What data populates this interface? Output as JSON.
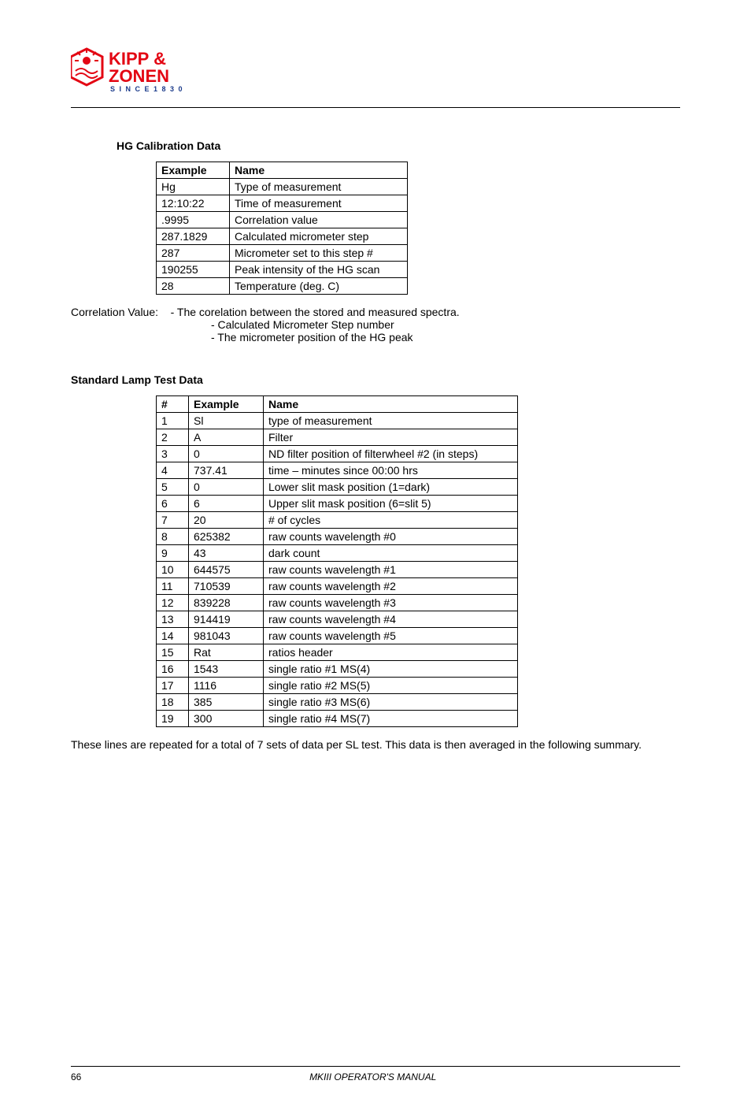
{
  "logo": {
    "brand_top": "KIPP &",
    "brand_bottom": "ZONEN",
    "tagline": "SINCE 1830",
    "red": "#e30613",
    "blue": "#1a3a8a"
  },
  "hg_section": {
    "title": "HG Calibration Data",
    "header_example": "Example",
    "header_name": "Name",
    "rows": [
      {
        "example": "Hg",
        "name": "Type of measurement"
      },
      {
        "example": "12:10:22",
        "name": "Time of measurement"
      },
      {
        "example": ".9995",
        "name": "Correlation value"
      },
      {
        "example": "287.1829",
        "name": "Calculated micrometer step"
      },
      {
        "example": "287",
        "name": "Micrometer set to this step #"
      },
      {
        "example": "190255",
        "name": "Peak intensity of the HG scan"
      },
      {
        "example": "28",
        "name": "Temperature (deg. C)"
      }
    ]
  },
  "correlation": {
    "label": "Correlation Value:",
    "line1": "- The corelation between the stored and measured spectra.",
    "line2": "- Calculated Micrometer Step number",
    "line3": "- The micrometer position of the HG peak"
  },
  "sl_section": {
    "title": "Standard Lamp Test Data",
    "header_num": "#",
    "header_example": "Example",
    "header_name": "Name",
    "rows": [
      {
        "n": "1",
        "ex": "Sl",
        "name": "type of measurement"
      },
      {
        "n": "2",
        "ex": "A",
        "name": "Filter"
      },
      {
        "n": "3",
        "ex": "0",
        "name": "ND filter position of filterwheel #2 (in steps)"
      },
      {
        "n": "4",
        "ex": "737.41",
        "name": "time – minutes since 00:00 hrs"
      },
      {
        "n": "5",
        "ex": "0",
        "name": "Lower slit mask position (1=dark)"
      },
      {
        "n": "6",
        "ex": "6",
        "name": "Upper slit mask position (6=slit 5)"
      },
      {
        "n": "7",
        "ex": "20",
        "name": "# of cycles"
      },
      {
        "n": "8",
        "ex": "625382",
        "name": "raw counts wavelength #0"
      },
      {
        "n": "9",
        "ex": "43",
        "name": "dark count"
      },
      {
        "n": "10",
        "ex": "644575",
        "name": "raw counts wavelength #1"
      },
      {
        "n": "11",
        "ex": "710539",
        "name": "raw counts wavelength #2"
      },
      {
        "n": "12",
        "ex": "839228",
        "name": "raw counts wavelength #3"
      },
      {
        "n": "13",
        "ex": "914419",
        "name": "raw counts wavelength #4"
      },
      {
        "n": "14",
        "ex": "981043",
        "name": "raw counts wavelength #5"
      },
      {
        "n": "15",
        "ex": "Rat",
        "name": "ratios header"
      },
      {
        "n": "16",
        "ex": "1543",
        "name": "single ratio #1 MS(4)"
      },
      {
        "n": "17",
        "ex": "1116",
        "name": "single ratio #2 MS(5)"
      },
      {
        "n": "18",
        "ex": "385",
        "name": "single ratio #3 MS(6)"
      },
      {
        "n": "19",
        "ex": "300",
        "name": "single ratio #4 MS(7)"
      }
    ]
  },
  "note": "These lines are repeated for a total of 7 sets of data per SL test. This data is then averaged in the following summary.",
  "footer": {
    "page": "66",
    "doc": "MKIII OPERATOR'S MANUAL"
  }
}
